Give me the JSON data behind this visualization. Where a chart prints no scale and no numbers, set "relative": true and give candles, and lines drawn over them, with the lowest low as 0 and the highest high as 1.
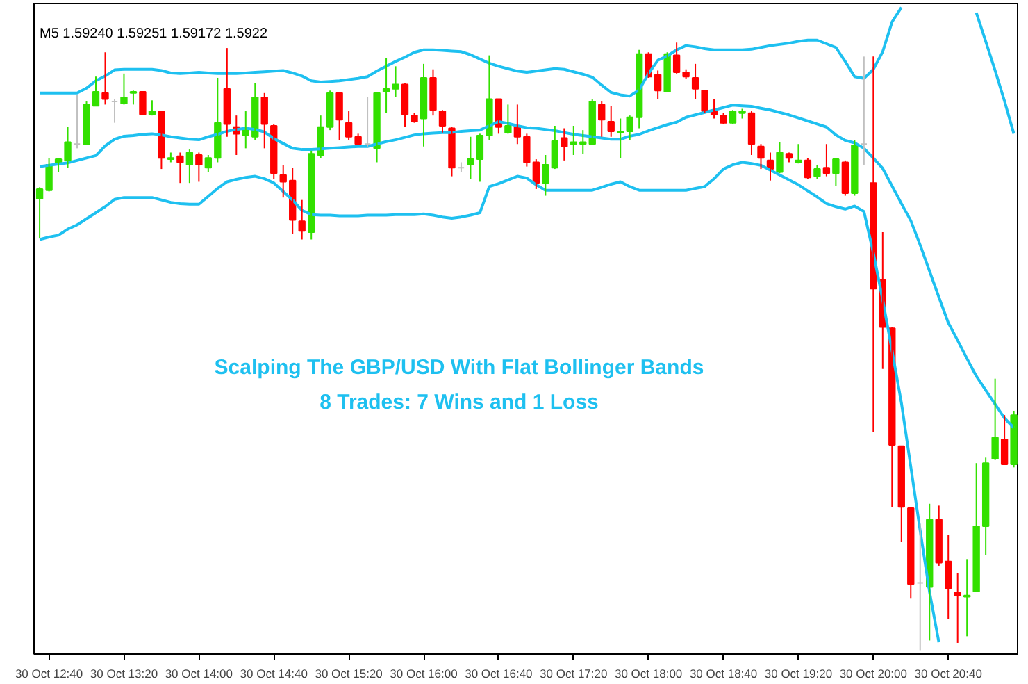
{
  "chart_data": {
    "type": "candlestick",
    "subtitle": "M5  1.59240 1.59251 1.59172 1.5922",
    "annotations": [
      "Scalping The GBP/USD With Flat Bollinger Bands",
      "8 Trades: 7 Wins and 1 Loss"
    ],
    "relative": true,
    "grid": false,
    "categories": [
      null,
      "30 Oct 12:40",
      null,
      null,
      null,
      null,
      null,
      null,
      null,
      "30 Oct 13:20",
      null,
      null,
      null,
      null,
      null,
      null,
      null,
      "30 Oct 14:00",
      null,
      null,
      null,
      null,
      null,
      null,
      null,
      "30 Oct 14:40",
      null,
      null,
      null,
      null,
      null,
      null,
      null,
      "30 Oct 15:20",
      null,
      null,
      null,
      null,
      null,
      null,
      null,
      "30 Oct 16:00",
      null,
      null,
      null,
      null,
      null,
      null,
      null,
      "30 Oct 16:40",
      null,
      null,
      null,
      null,
      null,
      null,
      null,
      "30 Oct 17:20",
      null,
      null,
      null,
      null,
      null,
      null,
      null,
      "30 Oct 18:00",
      null,
      null,
      null,
      null,
      null,
      null,
      null,
      "30 Oct 18:40",
      null,
      null,
      null,
      null,
      null,
      null,
      null,
      "30 Oct 19:20",
      null,
      null,
      null,
      null,
      null,
      null,
      null,
      "30 Oct 20:00",
      null,
      null,
      null,
      null,
      null,
      null,
      null,
      "30 Oct 20:40",
      null,
      null,
      null,
      null,
      null,
      null,
      null
    ],
    "ohlc": [
      [
        0.743,
        0.762,
        0.678,
        0.759
      ],
      [
        0.757,
        0.81,
        0.755,
        0.799
      ],
      [
        0.799,
        0.81,
        0.787,
        0.808
      ],
      [
        0.806,
        0.861,
        0.794,
        0.836
      ],
      [
        0.833,
        0.914,
        0.826,
        0.833
      ],
      [
        0.833,
        0.903,
        0.833,
        0.898
      ],
      [
        0.896,
        0.944,
        0.896,
        0.919
      ],
      [
        0.917,
        0.984,
        0.898,
        0.907
      ],
      [
        0.903,
        0.907,
        0.868,
        0.903
      ],
      [
        0.9,
        0.949,
        0.898,
        0.91
      ],
      [
        0.917,
        0.921,
        0.898,
        0.919
      ],
      [
        0.919,
        0.919,
        0.882,
        0.882
      ],
      [
        0.882,
        0.905,
        0.88,
        0.887
      ],
      [
        0.887,
        0.887,
        0.792,
        0.81
      ],
      [
        0.808,
        0.819,
        0.803,
        0.81
      ],
      [
        0.813,
        0.819,
        0.769,
        0.803
      ],
      [
        0.799,
        0.824,
        0.769,
        0.819
      ],
      [
        0.815,
        0.819,
        0.771,
        0.799
      ],
      [
        0.794,
        0.815,
        0.787,
        0.81
      ],
      [
        0.81,
        0.942,
        0.803,
        0.868
      ],
      [
        0.924,
        0.991,
        0.845,
        0.866
      ],
      [
        0.861,
        0.88,
        0.815,
        0.85
      ],
      [
        0.847,
        0.887,
        0.826,
        0.856
      ],
      [
        0.845,
        0.933,
        0.84,
        0.91
      ],
      [
        0.91,
        0.917,
        0.826,
        0.866
      ],
      [
        0.863,
        0.866,
        0.775,
        0.785
      ],
      [
        0.782,
        0.799,
        0.745,
        0.771
      ],
      [
        0.773,
        0.794,
        0.685,
        0.708
      ],
      [
        0.706,
        0.741,
        0.676,
        0.69
      ],
      [
        0.688,
        0.822,
        0.676,
        0.817
      ],
      [
        0.815,
        0.88,
        0.81,
        0.861
      ],
      [
        0.861,
        0.921,
        0.856,
        0.917
      ],
      [
        0.917,
        0.919,
        0.84,
        0.873
      ],
      [
        0.868,
        0.887,
        0.84,
        0.845
      ],
      [
        0.845,
        0.85,
        0.831,
        0.833
      ],
      [
        0.833,
        0.91,
        0.829,
        0.833
      ],
      [
        0.826,
        0.919,
        0.803,
        0.917
      ],
      [
        0.919,
        0.975,
        0.884,
        0.924
      ],
      [
        0.924,
        0.961,
        0.91,
        0.931
      ],
      [
        0.931,
        0.933,
        0.861,
        0.882
      ],
      [
        0.88,
        0.884,
        0.868,
        0.87
      ],
      [
        0.875,
        0.965,
        0.829,
        0.942
      ],
      [
        0.942,
        0.956,
        0.88,
        0.889
      ],
      [
        0.887,
        0.889,
        0.852,
        0.863
      ],
      [
        0.859,
        0.861,
        0.78,
        0.794
      ],
      [
        0.794,
        0.803,
        0.787,
        0.794
      ],
      [
        0.799,
        0.845,
        0.775,
        0.808
      ],
      [
        0.808,
        0.85,
        0.771,
        0.847
      ],
      [
        0.847,
        0.979,
        0.84,
        0.907
      ],
      [
        0.907,
        0.907,
        0.85,
        0.861
      ],
      [
        0.852,
        0.898,
        0.85,
        0.863
      ],
      [
        0.863,
        0.898,
        0.833,
        0.845
      ],
      [
        0.845,
        0.85,
        0.796,
        0.803
      ],
      [
        0.803,
        0.808,
        0.759,
        0.769
      ],
      [
        0.769,
        0.815,
        0.748,
        0.799
      ],
      [
        0.794,
        0.863,
        0.792,
        0.838
      ],
      [
        0.843,
        0.859,
        0.806,
        0.829
      ],
      [
        0.833,
        0.863,
        0.815,
        0.836
      ],
      [
        0.833,
        0.856,
        0.817,
        0.836
      ],
      [
        0.833,
        0.907,
        0.831,
        0.903
      ],
      [
        0.898,
        0.903,
        0.845,
        0.873
      ],
      [
        0.87,
        0.896,
        0.845,
        0.854
      ],
      [
        0.852,
        0.875,
        0.81,
        0.854
      ],
      [
        0.854,
        0.88,
        0.84,
        0.877
      ],
      [
        0.877,
        0.988,
        0.859,
        0.981
      ],
      [
        0.981,
        0.984,
        0.942,
        0.944
      ],
      [
        0.947,
        0.954,
        0.907,
        0.921
      ],
      [
        0.919,
        0.984,
        0.919,
        0.981
      ],
      [
        0.979,
        1.0,
        0.949,
        0.951
      ],
      [
        0.951,
        0.956,
        0.94,
        0.944
      ],
      [
        0.942,
        0.965,
        0.907,
        0.924
      ],
      [
        0.921,
        0.921,
        0.884,
        0.887
      ],
      [
        0.887,
        0.907,
        0.875,
        0.882
      ],
      [
        0.88,
        0.884,
        0.866,
        0.868
      ],
      [
        0.868,
        0.889,
        0.866,
        0.887
      ],
      [
        0.884,
        0.891,
        0.875,
        0.887
      ],
      [
        0.884,
        0.887,
        0.815,
        0.833
      ],
      [
        0.829,
        0.833,
        0.792,
        0.81
      ],
      [
        0.806,
        0.819,
        0.773,
        0.792
      ],
      [
        0.787,
        0.836,
        0.785,
        0.819
      ],
      [
        0.817,
        0.819,
        0.803,
        0.81
      ],
      [
        0.803,
        0.833,
        0.801,
        0.806
      ],
      [
        0.806,
        0.81,
        0.775,
        0.778
      ],
      [
        0.78,
        0.799,
        0.775,
        0.792
      ],
      [
        0.794,
        0.833,
        0.78,
        0.785
      ],
      [
        0.785,
        0.81,
        0.764,
        0.808
      ],
      [
        0.803,
        0.806,
        0.748,
        0.752
      ],
      [
        0.752,
        0.84,
        0.748,
        0.831
      ],
      [
        0.833,
        0.977,
        0.799,
        0.833
      ],
      [
        0.769,
        0.977,
        0.359,
        0.595
      ],
      [
        0.609,
        0.688,
        0.463,
        0.532
      ],
      [
        0.53,
        0.532,
        0.236,
        0.338
      ],
      [
        0.336,
        0.336,
        0.178,
        0.236
      ],
      [
        0.234,
        0.234,
        0.086,
        0.109
      ],
      [
        0.111,
        0.208,
        0.0,
        0.111
      ],
      [
        0.104,
        0.241,
        0.016,
        0.215
      ],
      [
        0.215,
        0.238,
        0.139,
        0.144
      ],
      [
        0.146,
        0.19,
        0.051,
        0.102
      ],
      [
        0.095,
        0.127,
        0.012,
        0.09
      ],
      [
        0.088,
        0.15,
        0.023,
        0.09
      ],
      [
        0.097,
        0.308,
        0.097,
        0.204
      ],
      [
        0.204,
        0.317,
        0.157,
        0.308
      ],
      [
        0.315,
        0.447,
        0.313,
        0.35
      ],
      [
        0.347,
        0.387,
        0.306,
        0.306
      ],
      [
        0.306,
        0.394,
        0.301,
        0.387
      ]
    ],
    "colors": [
      "#33e000",
      "#33e000",
      "#33e000",
      "#33e000",
      "#c0c0c0",
      "#33e000",
      "#33e000",
      "#ff0000",
      "#c0c0c0",
      "#33e000",
      "#33e000",
      "#ff0000",
      "#33e000",
      "#ff0000",
      "#33e000",
      "#ff0000",
      "#33e000",
      "#ff0000",
      "#33e000",
      "#33e000",
      "#ff0000",
      "#ff0000",
      "#33e000",
      "#33e000",
      "#ff0000",
      "#ff0000",
      "#ff0000",
      "#ff0000",
      "#ff0000",
      "#33e000",
      "#33e000",
      "#33e000",
      "#ff0000",
      "#ff0000",
      "#ff0000",
      "#c0c0c0",
      "#33e000",
      "#33e000",
      "#33e000",
      "#ff0000",
      "#ff0000",
      "#33e000",
      "#ff0000",
      "#ff0000",
      "#ff0000",
      "#c0c0c0",
      "#33e000",
      "#33e000",
      "#33e000",
      "#ff0000",
      "#33e000",
      "#ff0000",
      "#ff0000",
      "#ff0000",
      "#33e000",
      "#33e000",
      "#ff0000",
      "#33e000",
      "#33e000",
      "#33e000",
      "#ff0000",
      "#ff0000",
      "#33e000",
      "#33e000",
      "#33e000",
      "#ff0000",
      "#ff0000",
      "#33e000",
      "#ff0000",
      "#ff0000",
      "#ff0000",
      "#ff0000",
      "#ff0000",
      "#ff0000",
      "#33e000",
      "#33e000",
      "#ff0000",
      "#ff0000",
      "#ff0000",
      "#33e000",
      "#ff0000",
      "#33e000",
      "#ff0000",
      "#33e000",
      "#ff0000",
      "#33e000",
      "#ff0000",
      "#33e000",
      "#c0c0c0",
      "#ff0000",
      "#ff0000",
      "#ff0000",
      "#ff0000",
      "#ff0000",
      "#c0c0c0",
      "#33e000",
      "#ff0000",
      "#ff0000",
      "#ff0000",
      "#33e000",
      "#33e000",
      "#33e000",
      "#33e000",
      "#ff0000",
      "#33e000"
    ],
    "series": [
      {
        "type": "line",
        "color": "#1ec0f0",
        "values": [
          0.917,
          0.917,
          0.917,
          0.917,
          0.917,
          0.925,
          0.937,
          0.945,
          0.955,
          0.956,
          0.956,
          0.956,
          0.956,
          0.954,
          0.95,
          0.949,
          0.95,
          0.951,
          0.95,
          0.949,
          0.949,
          0.949,
          0.95,
          0.951,
          0.952,
          0.953,
          0.954,
          0.95,
          0.945,
          0.937,
          0.935,
          0.936,
          0.937,
          0.939,
          0.941,
          0.944,
          0.953,
          0.961,
          0.969,
          0.976,
          0.984,
          0.988,
          0.988,
          0.987,
          0.986,
          0.985,
          0.98,
          0.973,
          0.966,
          0.961,
          0.957,
          0.953,
          0.951,
          0.953,
          0.955,
          0.957,
          0.956,
          0.952,
          0.948,
          0.943,
          0.93,
          0.918,
          0.914,
          0.912,
          0.922,
          0.949,
          0.971,
          0.978,
          0.988,
          0.995,
          0.993,
          0.99,
          0.988,
          0.988,
          0.988,
          0.988,
          0.989,
          0.992,
          0.995,
          0.997,
          0.999,
          1.002,
          1.004,
          1.004,
          0.998,
          0.992,
          0.969,
          0.944,
          0.941,
          0.956,
          0.985,
          1.034,
          1.058,
          null,
          null,
          null,
          null,
          null,
          null,
          null,
          1.049,
          1.002,
          0.954,
          0.904,
          0.85
        ]
      },
      {
        "type": "line",
        "color": "#1ec0f0",
        "values": [
          0.796,
          0.798,
          0.8,
          0.802,
          0.806,
          0.81,
          0.814,
          0.83,
          0.841,
          0.846,
          0.847,
          0.849,
          0.85,
          0.848,
          0.845,
          0.843,
          0.841,
          0.84,
          0.845,
          0.849,
          0.854,
          0.857,
          0.859,
          0.857,
          0.853,
          0.842,
          0.834,
          0.826,
          0.824,
          0.824,
          0.825,
          0.826,
          0.827,
          0.828,
          0.829,
          0.829,
          0.833,
          0.837,
          0.84,
          0.844,
          0.848,
          0.85,
          0.851,
          0.852,
          0.852,
          0.854,
          0.855,
          0.856,
          0.863,
          0.87,
          0.867,
          0.863,
          0.86,
          0.859,
          0.857,
          0.855,
          0.852,
          0.849,
          0.847,
          0.845,
          0.843,
          0.841,
          0.841,
          0.846,
          0.849,
          0.855,
          0.86,
          0.865,
          0.869,
          0.877,
          0.881,
          0.885,
          0.889,
          0.893,
          0.897,
          0.896,
          0.895,
          0.892,
          0.889,
          0.885,
          0.881,
          0.876,
          0.871,
          0.866,
          0.861,
          0.848,
          0.839,
          0.835,
          0.826,
          0.81,
          0.793,
          0.764,
          0.735,
          0.707,
          0.667,
          0.624,
          0.581,
          0.539,
          0.51,
          0.48,
          0.451,
          0.428,
          0.405,
          0.382,
          0.366
        ]
      },
      {
        "type": "line",
        "color": "#1ec0f0",
        "values": [
          0.676,
          0.68,
          0.683,
          0.693,
          0.7,
          0.71,
          0.72,
          0.73,
          0.742,
          0.745,
          0.745,
          0.745,
          0.745,
          0.741,
          0.737,
          0.735,
          0.734,
          0.734,
          0.747,
          0.76,
          0.771,
          0.775,
          0.778,
          0.78,
          0.776,
          0.769,
          0.755,
          0.741,
          0.724,
          0.717,
          0.716,
          0.716,
          0.715,
          0.715,
          0.715,
          0.716,
          0.716,
          0.716,
          0.717,
          0.717,
          0.717,
          0.718,
          0.716,
          0.713,
          0.711,
          0.713,
          0.716,
          0.72,
          0.763,
          0.768,
          0.774,
          0.78,
          0.777,
          0.766,
          0.757,
          0.757,
          0.757,
          0.757,
          0.757,
          0.757,
          0.762,
          0.767,
          0.771,
          0.763,
          0.757,
          0.757,
          0.757,
          0.757,
          0.757,
          0.757,
          0.76,
          0.763,
          0.776,
          0.792,
          0.799,
          0.803,
          0.801,
          0.798,
          0.79,
          0.782,
          0.774,
          0.766,
          0.756,
          0.746,
          0.735,
          0.73,
          0.726,
          0.731,
          0.722,
          0.654,
          0.577,
          0.493,
          0.407,
          0.302,
          0.197,
          0.096,
          0.013,
          null,
          null,
          null,
          null,
          null,
          null,
          null,
          null
        ]
      }
    ]
  }
}
